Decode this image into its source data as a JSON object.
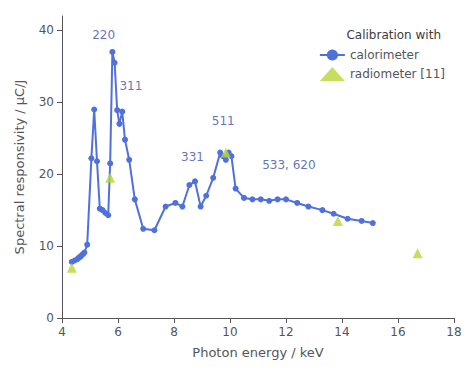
{
  "chart_data": {
    "type": "line",
    "xlabel": "Photon energy / keV",
    "ylabel": "Spectral responsivity / μC/J",
    "legend_title": "Calibration with",
    "legend": "upper right",
    "grid": false,
    "xlim": [
      4.0,
      18.0
    ],
    "ylim": [
      0,
      42
    ],
    "xticks": [
      4,
      6,
      8,
      10,
      12,
      14,
      16,
      18
    ],
    "yticks": [
      0,
      10,
      20,
      30,
      40
    ],
    "series": [
      {
        "name": "calorimeter",
        "type": "line",
        "marker": "circle",
        "x": [
          4.35,
          4.45,
          4.55,
          4.6,
          4.65,
          4.7,
          4.75,
          4.8,
          4.9,
          5.05,
          5.15,
          5.25,
          5.35,
          5.45,
          5.55,
          5.65,
          5.72,
          5.8,
          5.88,
          5.97,
          6.05,
          6.15,
          6.25,
          6.4,
          6.6,
          6.9,
          7.3,
          7.7,
          8.05,
          8.3,
          8.55,
          8.75,
          8.95,
          9.15,
          9.4,
          9.65,
          9.75,
          9.85,
          9.95,
          10.05,
          10.2,
          10.5,
          10.8,
          11.1,
          11.4,
          11.7,
          12.0,
          12.4,
          12.8,
          13.3,
          13.7,
          14.2,
          14.7,
          15.1
        ],
        "values": [
          7.8,
          8.0,
          8.2,
          8.4,
          8.5,
          8.7,
          8.9,
          9.1,
          10.2,
          22.2,
          29.0,
          21.8,
          15.2,
          15.0,
          14.6,
          14.3,
          21.5,
          37.0,
          35.5,
          28.9,
          27.0,
          28.7,
          24.8,
          22.0,
          16.5,
          12.4,
          12.2,
          15.5,
          16.0,
          15.5,
          18.5,
          19.0,
          15.5,
          17.0,
          19.5,
          23.0,
          22.5,
          22.0,
          23.0,
          22.5,
          18.0,
          16.7,
          16.5,
          16.5,
          16.3,
          16.5,
          16.5,
          16.0,
          15.5,
          15.0,
          14.5,
          13.8,
          13.5,
          13.2
        ]
      },
      {
        "name": "radiometer [11]",
        "type": "scatter",
        "marker": "triangle",
        "x": [
          4.35,
          5.72,
          9.85,
          13.85,
          16.7
        ],
        "values": [
          7.0,
          19.5,
          23.0,
          13.5,
          9.0
        ]
      }
    ],
    "annotations": [
      {
        "text": "220",
        "x": 5.08,
        "y": 38.5
      },
      {
        "text": "311",
        "x": 6.05,
        "y": 31.5
      },
      {
        "text": "331",
        "x": 8.25,
        "y": 21.5
      },
      {
        "text": "511",
        "x": 9.35,
        "y": 26.5
      },
      {
        "text": "533, 620",
        "x": 11.15,
        "y": 20.5
      }
    ]
  }
}
